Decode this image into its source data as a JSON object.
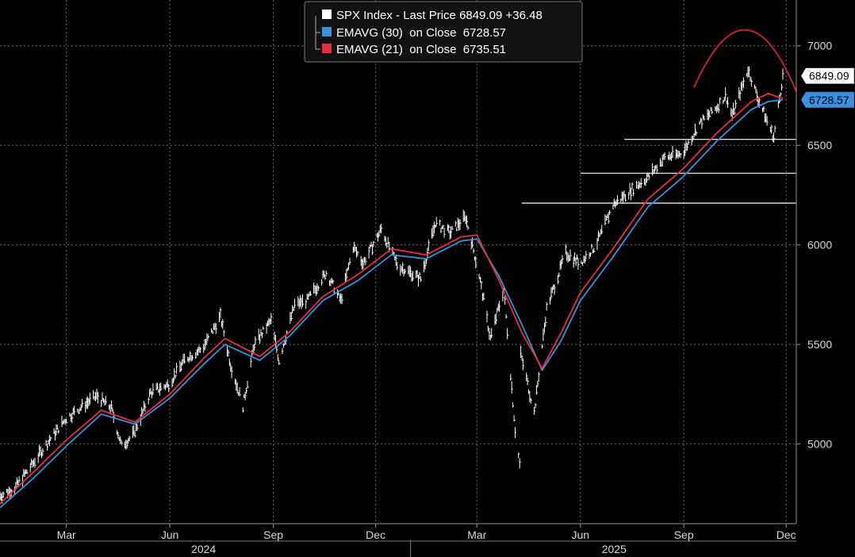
{
  "legend": {
    "items": [
      {
        "label": "SPX Index - Last Price",
        "value": "6849.09",
        "change": "+36.48",
        "color": "#ffffff"
      },
      {
        "label": "EMAVG (30)  on Close",
        "value": "6728.57",
        "color": "#3b8fe0"
      },
      {
        "label": "EMAVG (21)  on Close",
        "value": "6735.51",
        "color": "#e8303a"
      }
    ]
  },
  "price_tags": [
    {
      "value": "6849.09",
      "y": 6849.09,
      "bg": "#ffffff",
      "fg": "#000000"
    },
    {
      "value": "6728.57",
      "y": 6728.57,
      "bg": "#3b8fe0",
      "fg": "#000000"
    }
  ],
  "colors": {
    "price": "#ffffff",
    "ema30": "#3b8fe0",
    "ema21": "#e8303a",
    "arc": "#c0232d",
    "grid": "#6a6a6a"
  },
  "chart_data": {
    "type": "line",
    "title": "",
    "xlabel": "",
    "ylabel": "",
    "x_start": "2024-01-02",
    "x_end": "2025-12-10",
    "ylim": [
      4600,
      7230
    ],
    "y_ticks": [
      5000,
      5500,
      6000,
      6500,
      7000
    ],
    "y_tick_labels": [
      "5000",
      "5500",
      "6000",
      "6500",
      "7000"
    ],
    "x_ticks": [
      {
        "label": "Mar",
        "date": "2024-03-01"
      },
      {
        "label": "Jun",
        "date": "2024-06-01"
      },
      {
        "label": "Sep",
        "date": "2024-09-01"
      },
      {
        "label": "Dec",
        "date": "2024-12-01"
      },
      {
        "label": "Mar",
        "date": "2025-03-01"
      },
      {
        "label": "Jun",
        "date": "2025-06-01"
      },
      {
        "label": "Sep",
        "date": "2025-09-01"
      },
      {
        "label": "Dec",
        "date": "2025-12-01"
      }
    ],
    "years": [
      {
        "label": "2024",
        "date": "2024-07-01"
      },
      {
        "label": "2025",
        "date": "2025-07-01"
      }
    ],
    "year_boundaries": [
      "2024-01-01",
      "2025-01-01"
    ],
    "grid": true,
    "legend_position": "top-center",
    "series": [
      {
        "name": "SPX Index - Last Price",
        "style": "bars",
        "points": [
          [
            "2024-01-02",
            4740
          ],
          [
            "2024-01-15",
            4780
          ],
          [
            "2024-01-31",
            4900
          ],
          [
            "2024-02-15",
            5020
          ],
          [
            "2024-03-01",
            5130
          ],
          [
            "2024-03-15",
            5190
          ],
          [
            "2024-03-28",
            5240
          ],
          [
            "2024-04-10",
            5180
          ],
          [
            "2024-04-19",
            4990
          ],
          [
            "2024-04-30",
            5050
          ],
          [
            "2024-05-15",
            5260
          ],
          [
            "2024-05-31",
            5300
          ],
          [
            "2024-06-15",
            5430
          ],
          [
            "2024-06-30",
            5480
          ],
          [
            "2024-07-16",
            5640
          ],
          [
            "2024-07-25",
            5400
          ],
          [
            "2024-08-05",
            5190
          ],
          [
            "2024-08-15",
            5500
          ],
          [
            "2024-08-30",
            5620
          ],
          [
            "2024-09-06",
            5420
          ],
          [
            "2024-09-20",
            5700
          ],
          [
            "2024-10-01",
            5720
          ],
          [
            "2024-10-18",
            5860
          ],
          [
            "2024-10-31",
            5720
          ],
          [
            "2024-11-11",
            5990
          ],
          [
            "2024-11-20",
            5910
          ],
          [
            "2024-12-06",
            6080
          ],
          [
            "2024-12-20",
            5900
          ],
          [
            "2025-01-10",
            5830
          ],
          [
            "2025-01-23",
            6110
          ],
          [
            "2025-02-05",
            6060
          ],
          [
            "2025-02-19",
            6140
          ],
          [
            "2025-03-03",
            5850
          ],
          [
            "2025-03-13",
            5530
          ],
          [
            "2025-03-25",
            5780
          ],
          [
            "2025-04-04",
            5070
          ],
          [
            "2025-04-08",
            4900
          ],
          [
            "2025-04-09",
            5450
          ],
          [
            "2025-04-21",
            5160
          ],
          [
            "2025-05-02",
            5680
          ],
          [
            "2025-05-19",
            5960
          ],
          [
            "2025-06-01",
            5910
          ],
          [
            "2025-06-15",
            6000
          ],
          [
            "2025-06-30",
            6200
          ],
          [
            "2025-07-15",
            6270
          ],
          [
            "2025-07-31",
            6340
          ],
          [
            "2025-08-15",
            6440
          ],
          [
            "2025-08-31",
            6460
          ],
          [
            "2025-09-15",
            6610
          ],
          [
            "2025-09-30",
            6690
          ],
          [
            "2025-10-08",
            6750
          ],
          [
            "2025-10-14",
            6650
          ],
          [
            "2025-10-28",
            6880
          ],
          [
            "2025-11-07",
            6720
          ],
          [
            "2025-11-20",
            6540
          ],
          [
            "2025-11-28",
            6849.09
          ]
        ]
      },
      {
        "name": "EMAVG (30)  on Close",
        "style": "line",
        "points": [
          [
            "2024-01-02",
            4680
          ],
          [
            "2024-02-01",
            4830
          ],
          [
            "2024-03-01",
            4990
          ],
          [
            "2024-04-01",
            5150
          ],
          [
            "2024-05-01",
            5100
          ],
          [
            "2024-06-01",
            5230
          ],
          [
            "2024-07-01",
            5400
          ],
          [
            "2024-07-20",
            5500
          ],
          [
            "2024-08-20",
            5420
          ],
          [
            "2024-09-15",
            5540
          ],
          [
            "2024-10-15",
            5720
          ],
          [
            "2024-11-15",
            5820
          ],
          [
            "2024-12-15",
            5950
          ],
          [
            "2025-01-15",
            5930
          ],
          [
            "2025-02-15",
            6020
          ],
          [
            "2025-03-01",
            6030
          ],
          [
            "2025-03-20",
            5850
          ],
          [
            "2025-04-10",
            5600
          ],
          [
            "2025-04-28",
            5370
          ],
          [
            "2025-05-15",
            5520
          ],
          [
            "2025-06-01",
            5720
          ],
          [
            "2025-06-30",
            5940
          ],
          [
            "2025-07-31",
            6190
          ],
          [
            "2025-08-31",
            6340
          ],
          [
            "2025-09-30",
            6520
          ],
          [
            "2025-10-31",
            6680
          ],
          [
            "2025-11-15",
            6720
          ],
          [
            "2025-11-28",
            6728.57
          ]
        ]
      },
      {
        "name": "EMAVG (21)  on Close",
        "style": "line",
        "points": [
          [
            "2024-01-02",
            4700
          ],
          [
            "2024-02-01",
            4860
          ],
          [
            "2024-03-01",
            5020
          ],
          [
            "2024-04-01",
            5170
          ],
          [
            "2024-05-01",
            5110
          ],
          [
            "2024-06-01",
            5250
          ],
          [
            "2024-07-01",
            5430
          ],
          [
            "2024-07-20",
            5530
          ],
          [
            "2024-08-20",
            5440
          ],
          [
            "2024-09-15",
            5560
          ],
          [
            "2024-10-15",
            5740
          ],
          [
            "2024-11-15",
            5850
          ],
          [
            "2024-12-15",
            5980
          ],
          [
            "2025-01-15",
            5950
          ],
          [
            "2025-02-15",
            6040
          ],
          [
            "2025-03-01",
            6050
          ],
          [
            "2025-03-20",
            5830
          ],
          [
            "2025-04-10",
            5560
          ],
          [
            "2025-04-28",
            5380
          ],
          [
            "2025-05-15",
            5560
          ],
          [
            "2025-06-01",
            5760
          ],
          [
            "2025-06-30",
            5980
          ],
          [
            "2025-07-31",
            6230
          ],
          [
            "2025-08-31",
            6380
          ],
          [
            "2025-09-30",
            6560
          ],
          [
            "2025-10-31",
            6720
          ],
          [
            "2025-11-15",
            6760
          ],
          [
            "2025-11-28",
            6735.51
          ]
        ]
      }
    ],
    "annotations": {
      "support_lines": [
        {
          "y": 6530,
          "from": "2025-07-10",
          "to": "2025-12-10"
        },
        {
          "y": 6360,
          "from": "2025-06-01",
          "to": "2025-12-10"
        },
        {
          "y": 6210,
          "from": "2025-04-10",
          "to": "2025-12-10"
        }
      ],
      "top_arc": {
        "from": [
          "2025-09-10",
          6790
        ],
        "peak": [
          "2025-10-26",
          7080
        ],
        "to": [
          "2025-12-10",
          6770
        ]
      }
    }
  }
}
